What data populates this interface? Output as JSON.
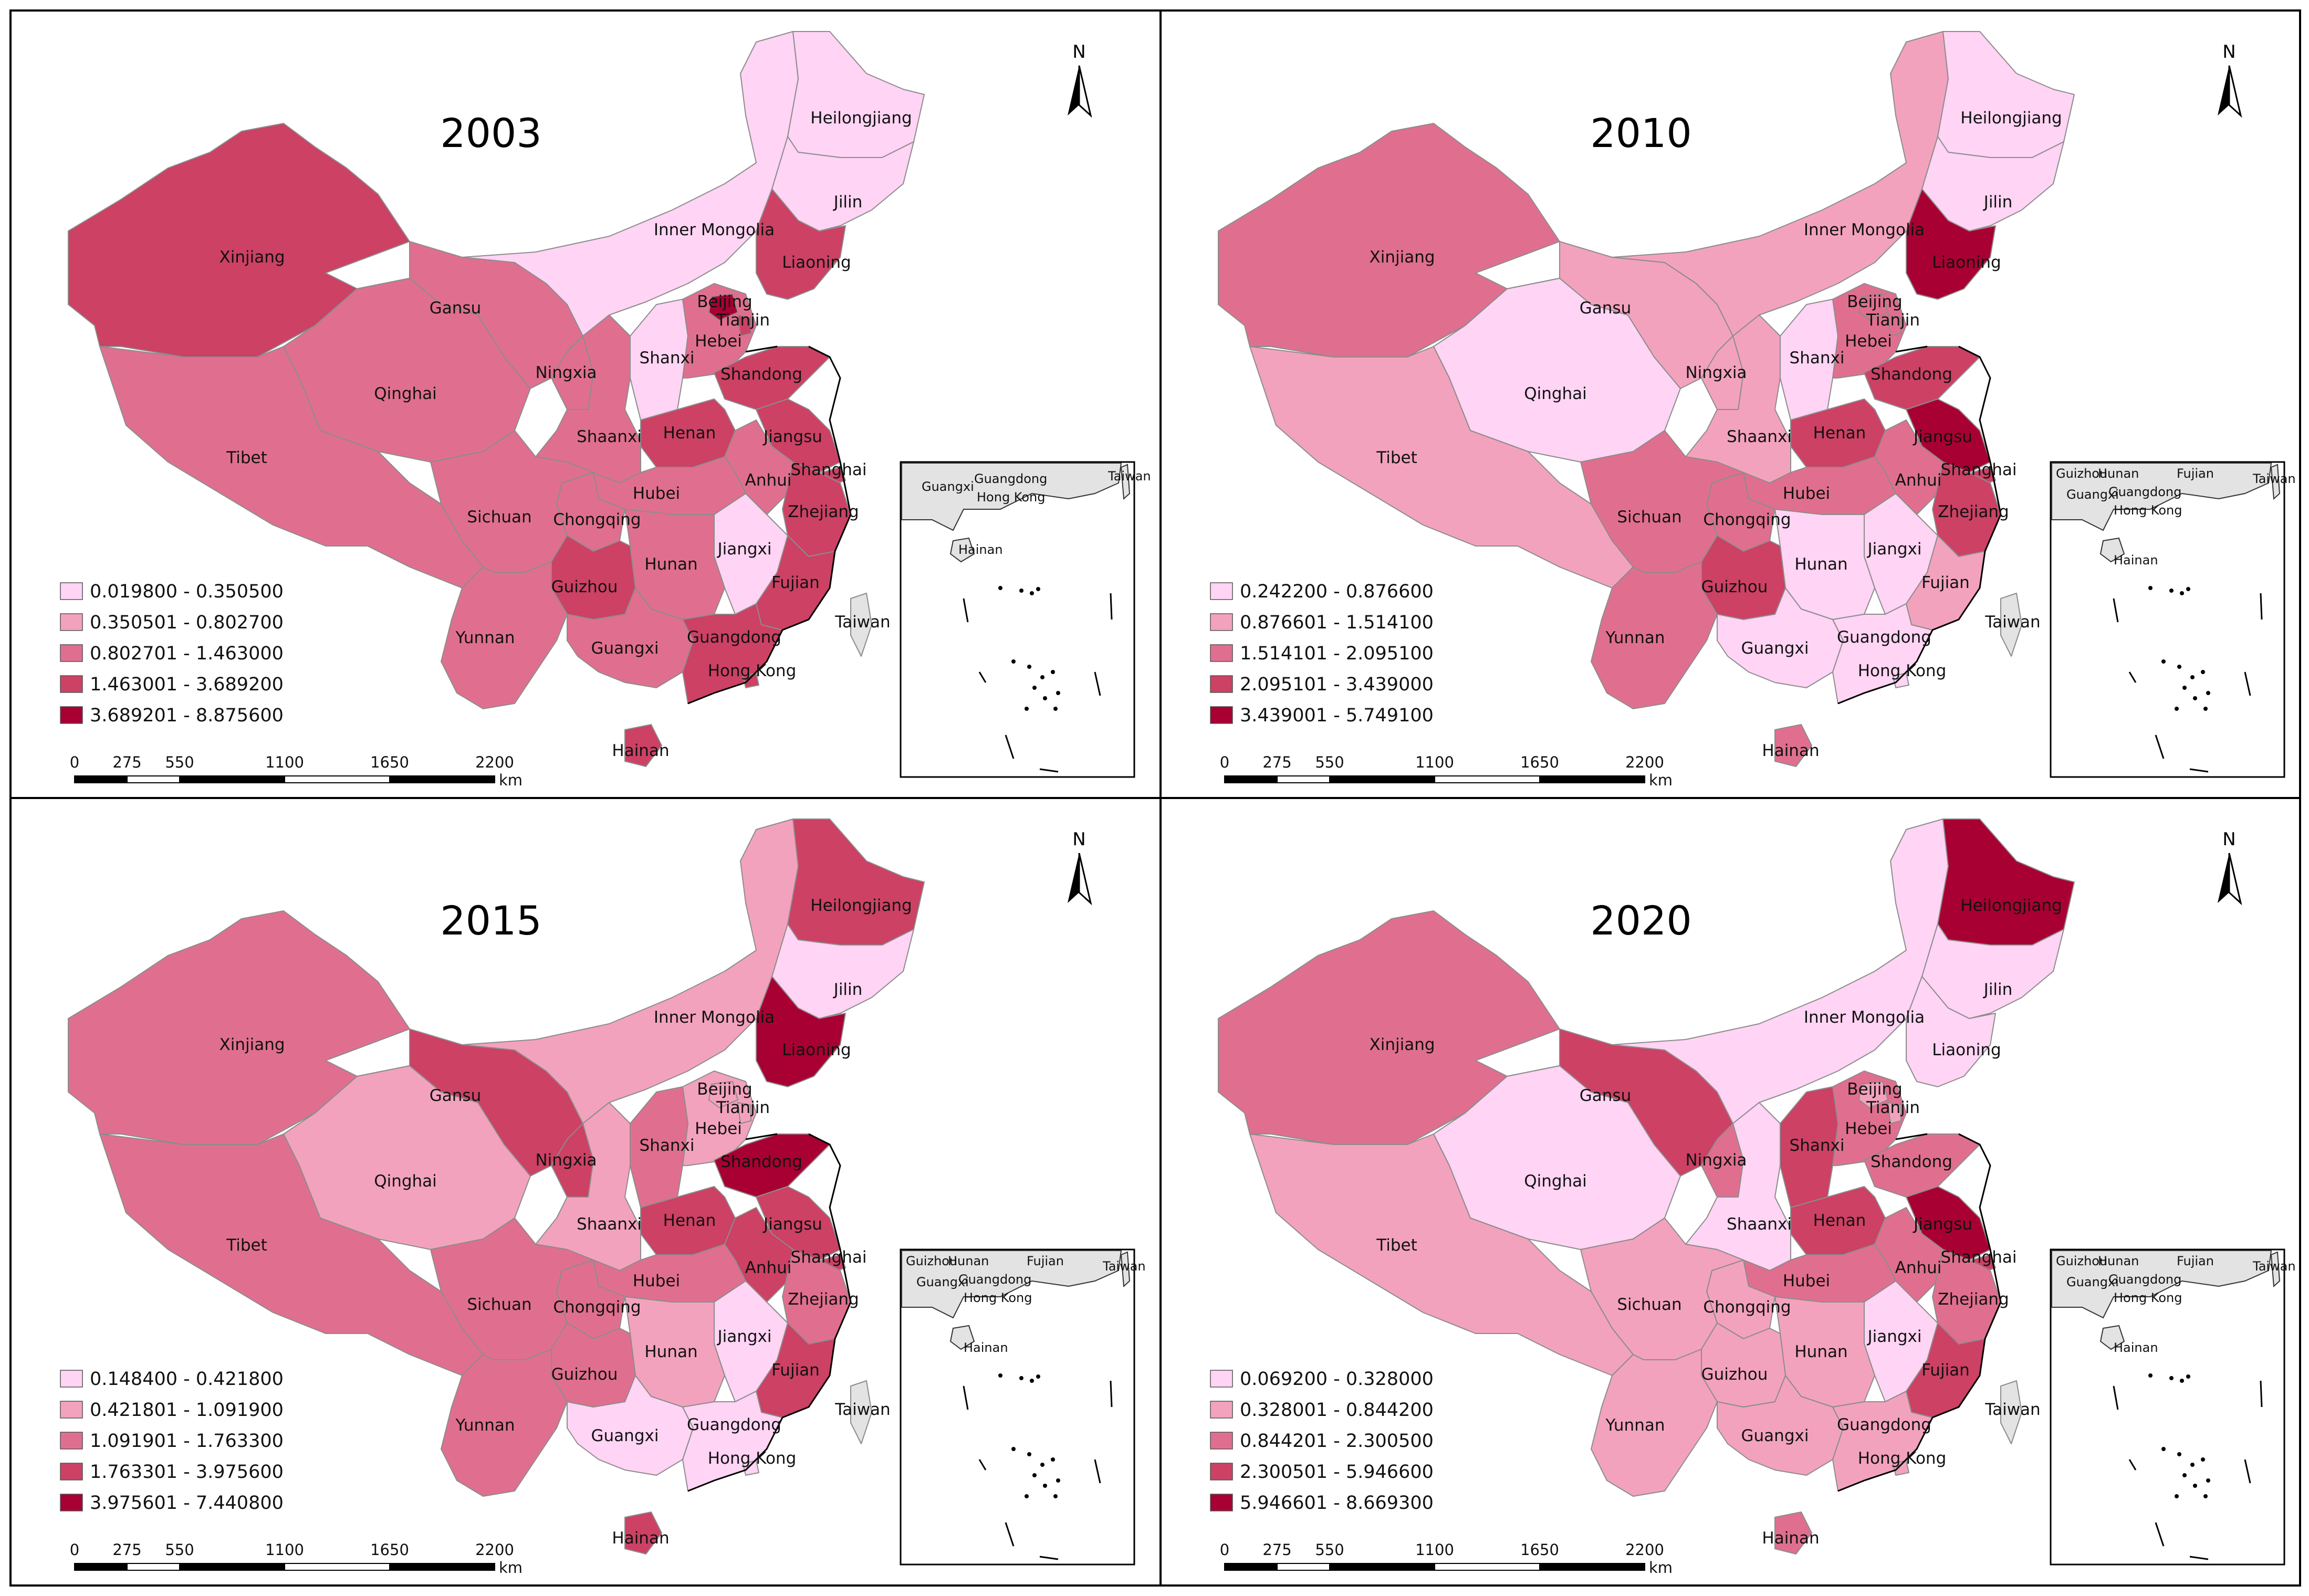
{
  "figure": {
    "scale_labels": [
      "0",
      "275",
      "550",
      "1100",
      "1650",
      "2200"
    ],
    "scale_unit": "km",
    "north_label": "N",
    "inset_labels": [
      "Guangxi",
      "Guangdong",
      "Hong Kong",
      "Hainan",
      "Taiwan"
    ],
    "inset_labels_alt": [
      "Guizhou",
      "Hunan",
      "Fujian",
      "Guangxi",
      "Guangdong",
      "Hong Kong",
      "Hainan",
      "Taiwan"
    ]
  },
  "colors": [
    "#ffd4f4",
    "#f3a2bd",
    "#e06f8f",
    "#cc4164",
    "#a80033"
  ],
  "chart_data": [
    {
      "type": "choropleth",
      "title": "2003",
      "legend_classes": [
        "0.019800 - 0.350500",
        "0.350501 - 0.802700",
        "0.802701 - 1.463000",
        "1.463001 - 3.689200",
        "3.689201 - 8.875600"
      ],
      "class_by_province": {
        "Heilongjiang": 1,
        "Jilin": 1,
        "Liaoning": 4,
        "Inner Mongolia": 1,
        "Beijing": 5,
        "Tianjin": 4,
        "Hebei": 3,
        "Shanxi": 1,
        "Shandong": 4,
        "Henan": 4,
        "Jiangsu": 4,
        "Shanghai": 4,
        "Anhui": 3,
        "Zhejiang": 4,
        "Jiangxi": 1,
        "Fujian": 4,
        "Hubei": 3,
        "Hunan": 3,
        "Guangdong": 4,
        "Hong Kong": 4,
        "Guangxi": 3,
        "Hainan": 4,
        "Guizhou": 4,
        "Yunnan": 3,
        "Sichuan": 3,
        "Chongqing": 3,
        "Shaanxi": 3,
        "Ningxia": 3,
        "Gansu": 3,
        "Qinghai": 3,
        "Tibet": 3,
        "Xinjiang": 4,
        "Taiwan": 0
      }
    },
    {
      "type": "choropleth",
      "title": "2010",
      "legend_classes": [
        "0.242200 - 0.876600",
        "0.876601 - 1.514100",
        "1.514101 - 2.095100",
        "2.095101 - 3.439000",
        "3.439001 - 5.749100"
      ],
      "class_by_province": {
        "Heilongjiang": 1,
        "Jilin": 1,
        "Liaoning": 5,
        "Inner Mongolia": 2,
        "Beijing": 3,
        "Tianjin": 3,
        "Hebei": 3,
        "Shanxi": 1,
        "Shandong": 4,
        "Henan": 4,
        "Jiangsu": 5,
        "Shanghai": 4,
        "Anhui": 3,
        "Zhejiang": 4,
        "Jiangxi": 1,
        "Fujian": 2,
        "Hubei": 3,
        "Hunan": 1,
        "Guangdong": 1,
        "Hong Kong": 1,
        "Guangxi": 1,
        "Hainan": 3,
        "Guizhou": 4,
        "Yunnan": 3,
        "Sichuan": 3,
        "Chongqing": 3,
        "Shaanxi": 2,
        "Ningxia": 2,
        "Gansu": 2,
        "Qinghai": 1,
        "Tibet": 2,
        "Xinjiang": 3,
        "Taiwan": 0
      }
    },
    {
      "type": "choropleth",
      "title": "2015",
      "legend_classes": [
        "0.148400 - 0.421800",
        "0.421801 - 1.091900",
        "1.091901 - 1.763300",
        "1.763301 - 3.975600",
        "3.975601 - 7.440800"
      ],
      "class_by_province": {
        "Heilongjiang": 4,
        "Jilin": 1,
        "Liaoning": 5,
        "Inner Mongolia": 2,
        "Beijing": 2,
        "Tianjin": 2,
        "Hebei": 2,
        "Shanxi": 3,
        "Shandong": 5,
        "Henan": 4,
        "Jiangsu": 4,
        "Shanghai": 4,
        "Anhui": 4,
        "Zhejiang": 3,
        "Jiangxi": 1,
        "Fujian": 4,
        "Hubei": 3,
        "Hunan": 2,
        "Guangdong": 1,
        "Hong Kong": 1,
        "Guangxi": 1,
        "Hainan": 4,
        "Guizhou": 3,
        "Yunnan": 3,
        "Sichuan": 3,
        "Chongqing": 3,
        "Shaanxi": 2,
        "Ningxia": 4,
        "Gansu": 4,
        "Qinghai": 2,
        "Tibet": 3,
        "Xinjiang": 3,
        "Taiwan": 0
      }
    },
    {
      "type": "choropleth",
      "title": "2020",
      "legend_classes": [
        "0.069200 - 0.328000",
        "0.328001 - 0.844200",
        "0.844201 - 2.300500",
        "2.300501 - 5.946600",
        "5.946601 - 8.669300"
      ],
      "class_by_province": {
        "Heilongjiang": 5,
        "Jilin": 1,
        "Liaoning": 1,
        "Inner Mongolia": 1,
        "Beijing": 2,
        "Tianjin": 2,
        "Hebei": 3,
        "Shanxi": 4,
        "Shandong": 3,
        "Henan": 4,
        "Jiangsu": 5,
        "Shanghai": 4,
        "Anhui": 3,
        "Zhejiang": 3,
        "Jiangxi": 1,
        "Fujian": 4,
        "Hubei": 3,
        "Hunan": 2,
        "Guangdong": 2,
        "Hong Kong": 2,
        "Guangxi": 2,
        "Hainan": 3,
        "Guizhou": 2,
        "Yunnan": 2,
        "Sichuan": 2,
        "Chongqing": 2,
        "Shaanxi": 1,
        "Ningxia": 3,
        "Gansu": 4,
        "Qinghai": 1,
        "Tibet": 2,
        "Xinjiang": 3,
        "Taiwan": 0
      }
    }
  ]
}
